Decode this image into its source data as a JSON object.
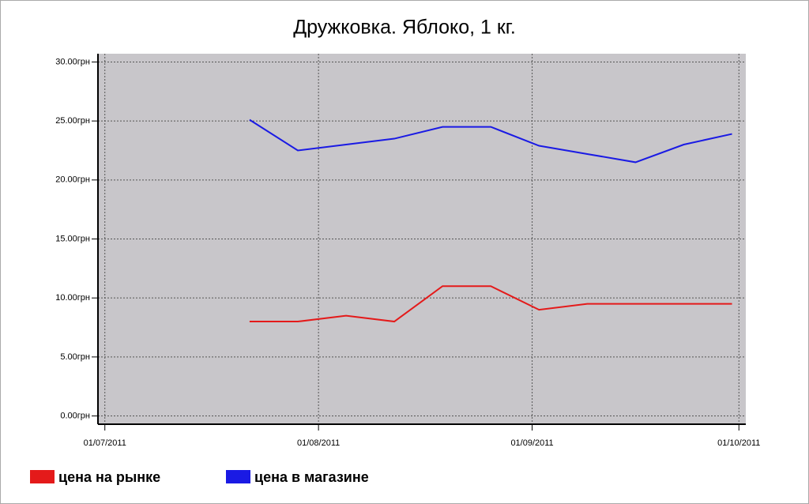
{
  "chart_data": {
    "type": "line",
    "title": "Дружковка. Яблоко, 1 кг.",
    "x": [
      "2011-07-22",
      "2011-07-29",
      "2011-08-05",
      "2011-08-12",
      "2011-08-19",
      "2011-08-26",
      "2011-09-02",
      "2011-09-09",
      "2011-09-16",
      "2011-09-23",
      "2011-09-30"
    ],
    "series": [
      {
        "name": "цена на рынке",
        "color": "#e41a1a",
        "values": [
          8.0,
          8.0,
          8.5,
          8.0,
          11.0,
          11.0,
          9.0,
          9.5,
          9.5,
          9.5,
          9.5
        ]
      },
      {
        "name": "цена в магазине",
        "color": "#1a1ae4",
        "values": [
          25.1,
          22.5,
          23.0,
          23.5,
          24.5,
          24.5,
          22.9,
          22.2,
          21.5,
          23.0,
          23.9
        ]
      }
    ],
    "xlim": [
      "2011-06-30",
      "2011-10-02"
    ],
    "xticks": [
      {
        "value": "2011-07-01",
        "label": "01/07/2011"
      },
      {
        "value": "2011-08-01",
        "label": "01/08/2011"
      },
      {
        "value": "2011-09-01",
        "label": "01/09/2011"
      },
      {
        "value": "2011-10-01",
        "label": "01/10/2011"
      }
    ],
    "ylim": [
      -0.7,
      30.7
    ],
    "yticks": [
      {
        "value": 0,
        "label": "0.00грн"
      },
      {
        "value": 5,
        "label": "5.00грн"
      },
      {
        "value": 10,
        "label": "10.00грн"
      },
      {
        "value": 15,
        "label": "15.00грн"
      },
      {
        "value": 20,
        "label": "20.00грн"
      },
      {
        "value": 25,
        "label": "25.00грн"
      },
      {
        "value": 30,
        "label": "30.00грн"
      }
    ],
    "grid": true,
    "legend": "bottom"
  }
}
